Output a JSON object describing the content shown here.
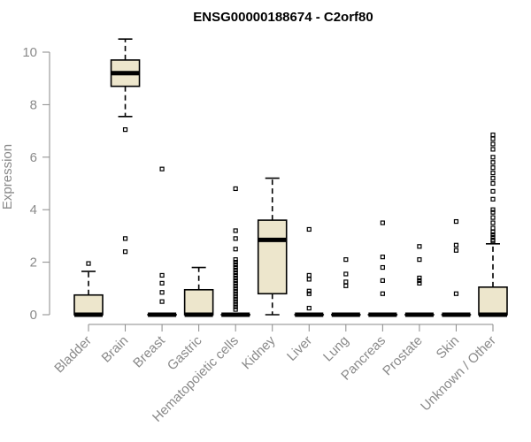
{
  "chart_data": {
    "type": "boxplot",
    "title": "ENSG00000188674 - C2orf80",
    "ylabel": "Expression",
    "xlabel": "",
    "ylim": [
      0,
      10.5
    ],
    "yticks": [
      0,
      2,
      4,
      6,
      8,
      10
    ],
    "grid": false,
    "box_color": "#ede6cc",
    "categories": [
      "Bladder",
      "Brain",
      "Breast",
      "Gastric",
      "Hematopoietic cells",
      "Kidney",
      "Liver",
      "Lung",
      "Pancreas",
      "Prostate",
      "Skin",
      "Unknown / Other"
    ],
    "boxes": [
      {
        "category": "Bladder",
        "q1": 0,
        "median": 0,
        "q3": 0.75,
        "whisker_low": 0,
        "whisker_high": 1.65,
        "outliers": [
          1.95
        ]
      },
      {
        "category": "Brain",
        "q1": 8.7,
        "median": 9.2,
        "q3": 9.7,
        "whisker_low": 7.55,
        "whisker_high": 10.5,
        "outliers": [
          7.05,
          2.9,
          2.4
        ]
      },
      {
        "category": "Breast",
        "q1": 0,
        "median": 0,
        "q3": 0,
        "whisker_low": 0,
        "whisker_high": 0,
        "outliers": [
          5.55,
          1.5,
          1.2,
          0.85,
          0.5
        ]
      },
      {
        "category": "Gastric",
        "q1": 0,
        "median": 0,
        "q3": 0.95,
        "whisker_low": 0,
        "whisker_high": 1.8,
        "outliers": []
      },
      {
        "category": "Hematopoietic cells",
        "q1": 0,
        "median": 0,
        "q3": 0,
        "whisker_low": 0,
        "whisker_high": 0,
        "outliers": [
          4.8,
          3.2,
          2.9,
          2.5,
          2.1,
          2.0,
          1.9,
          1.8,
          1.7,
          1.6,
          1.5,
          1.4,
          1.3,
          1.2,
          1.1,
          1.0,
          0.9,
          0.8,
          0.7,
          0.6,
          0.5,
          0.4,
          0.3,
          0.2
        ]
      },
      {
        "category": "Kidney",
        "q1": 0.8,
        "median": 2.85,
        "q3": 3.6,
        "whisker_low": 0,
        "whisker_high": 5.2,
        "outliers": []
      },
      {
        "category": "Liver",
        "q1": 0,
        "median": 0,
        "q3": 0,
        "whisker_low": 0,
        "whisker_high": 0,
        "outliers": [
          3.25,
          1.5,
          1.35,
          0.9,
          0.8,
          0.25
        ]
      },
      {
        "category": "Lung",
        "q1": 0,
        "median": 0,
        "q3": 0,
        "whisker_low": 0,
        "whisker_high": 0,
        "outliers": [
          2.1,
          1.55,
          1.25,
          1.1
        ]
      },
      {
        "category": "Pancreas",
        "q1": 0,
        "median": 0,
        "q3": 0,
        "whisker_low": 0,
        "whisker_high": 0,
        "outliers": [
          3.5,
          2.2,
          1.8,
          1.3,
          0.8
        ]
      },
      {
        "category": "Prostate",
        "q1": 0,
        "median": 0,
        "q3": 0,
        "whisker_low": 0,
        "whisker_high": 0,
        "outliers": [
          2.6,
          2.1,
          1.4,
          1.3,
          1.2
        ]
      },
      {
        "category": "Skin",
        "q1": 0,
        "median": 0,
        "q3": 0,
        "whisker_low": 0,
        "whisker_high": 0,
        "outliers": [
          3.55,
          2.65,
          2.45,
          0.8
        ]
      },
      {
        "category": "Unknown / Other",
        "q1": 0,
        "median": 0,
        "q3": 1.05,
        "whisker_low": 0,
        "whisker_high": 2.7,
        "outliers": [
          6.85,
          6.7,
          6.5,
          6.3,
          6.0,
          5.8,
          5.6,
          5.4,
          5.2,
          5.0,
          4.7,
          4.4,
          4.0,
          3.9,
          3.7,
          3.5,
          3.3,
          3.15,
          3.05,
          2.95,
          2.85,
          2.8
        ]
      }
    ]
  }
}
